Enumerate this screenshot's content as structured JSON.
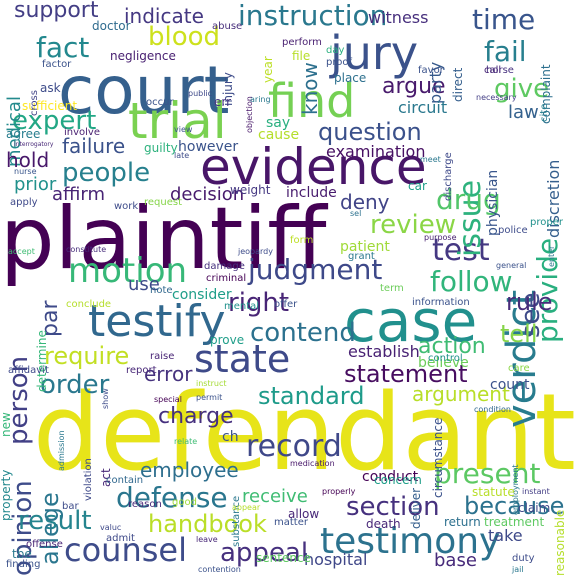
{
  "words": [
    {
      "text": "defendant",
      "color": "#e7e419"
    },
    {
      "text": "plaintiff",
      "color": "#440154"
    },
    {
      "text": "court",
      "color": "#35608d"
    },
    {
      "text": "evidence",
      "color": "#481668"
    },
    {
      "text": "case",
      "color": "#21908d"
    },
    {
      "text": "trial",
      "color": "#7ad151"
    },
    {
      "text": "jury",
      "color": "#3b528b"
    },
    {
      "text": "testify",
      "color": "#31688e"
    },
    {
      "text": "find",
      "color": "#75d054"
    },
    {
      "text": "verdict",
      "color": "#287c8e"
    },
    {
      "text": "testimony",
      "color": "#2c728e"
    },
    {
      "text": "state",
      "color": "#3e4a89"
    },
    {
      "text": "motion",
      "color": "#37b878"
    },
    {
      "text": "record",
      "color": "#3f4889"
    },
    {
      "text": "counsel",
      "color": "#3e4c8a"
    },
    {
      "text": "judgment",
      "color": "#3e4989"
    },
    {
      "text": "present",
      "color": "#5cc863"
    },
    {
      "text": "test",
      "color": "#453882"
    },
    {
      "text": "section",
      "color": "#46317e"
    },
    {
      "text": "instruction",
      "color": "#2a788e"
    },
    {
      "text": "issue",
      "color": "#2db27d"
    },
    {
      "text": "provide",
      "color": "#29af7f"
    },
    {
      "text": "defense",
      "color": "#2a768e"
    },
    {
      "text": "appeal",
      "color": "#46307e"
    },
    {
      "text": "people",
      "color": "#27808e"
    },
    {
      "text": "blood",
      "color": "#cde11d"
    },
    {
      "text": "fact",
      "color": "#23888e"
    },
    {
      "text": "time",
      "color": "#39558c"
    },
    {
      "text": "fail",
      "color": "#277f8e"
    },
    {
      "text": "question",
      "color": "#3b518b"
    },
    {
      "text": "drug",
      "color": "#52c569"
    },
    {
      "text": "review",
      "color": "#8bd646"
    },
    {
      "text": "follow",
      "color": "#31b57b"
    },
    {
      "text": "see",
      "color": "#3e4a89"
    },
    {
      "text": "rule",
      "color": "#472c7a"
    },
    {
      "text": "tell",
      "color": "#86d549"
    },
    {
      "text": "right",
      "color": "#482576"
    },
    {
      "text": "contend",
      "color": "#2c718e"
    },
    {
      "text": "opinion",
      "color": "#3e4c8a"
    },
    {
      "text": "handbook",
      "color": "#bade28"
    },
    {
      "text": "statement",
      "color": "#470d60"
    },
    {
      "text": "standard",
      "color": "#1e9b8a"
    },
    {
      "text": "argument",
      "color": "#b8de29"
    },
    {
      "text": "result",
      "color": "#25848e"
    },
    {
      "text": "because",
      "color": "#2c728e"
    },
    {
      "text": "order",
      "color": "#2a788e"
    },
    {
      "text": "allege",
      "color": "#2a768e"
    },
    {
      "text": "expert",
      "color": "#22a785"
    },
    {
      "text": "argue",
      "color": "#481a6c"
    },
    {
      "text": "give",
      "color": "#5ec962"
    },
    {
      "text": "person",
      "color": "#424086"
    },
    {
      "text": "require",
      "color": "#c2df23"
    },
    {
      "text": "know",
      "color": "#2d708e"
    },
    {
      "text": "indicate",
      "color": "#453882"
    },
    {
      "text": "support",
      "color": "#433e85"
    },
    {
      "text": "employee",
      "color": "#2e6f8e"
    },
    {
      "text": "charge",
      "color": "#46307e"
    },
    {
      "text": "error",
      "color": "#46327e"
    },
    {
      "text": "action",
      "color": "#3fbc73"
    },
    {
      "text": "deny",
      "color": "#414487"
    },
    {
      "text": "medical",
      "color": "#238a8d"
    },
    {
      "text": "failure",
      "color": "#3b528b"
    },
    {
      "text": "witness",
      "color": "#472f7d"
    },
    {
      "text": "hold",
      "color": "#48186a"
    },
    {
      "text": "law",
      "color": "#34618d"
    },
    {
      "text": "examination",
      "color": "#471063"
    },
    {
      "text": "establish",
      "color": "#482173"
    },
    {
      "text": "decision",
      "color": "#481b6d"
    },
    {
      "text": "affirm",
      "color": "#482475"
    },
    {
      "text": "prior",
      "color": "#21918c"
    },
    {
      "text": "party",
      "color": "#375a8c"
    },
    {
      "text": "circuit",
      "color": "#2a788e"
    },
    {
      "text": "receive",
      "color": "#3fbc73"
    },
    {
      "text": "hospital",
      "color": "#3f4788"
    },
    {
      "text": "base",
      "color": "#472a7a"
    },
    {
      "text": "conduct",
      "color": "#440154"
    },
    {
      "text": "patient",
      "color": "#a0da39"
    },
    {
      "text": "use",
      "color": "#3e4a89"
    },
    {
      "text": "par",
      "color": "#3e4a89"
    },
    {
      "text": "consider",
      "color": "#1f9e89"
    },
    {
      "text": "believe",
      "color": "#6ccd5a"
    },
    {
      "text": "count",
      "color": "#3b528b"
    },
    {
      "text": "discretion",
      "color": "#355f8d"
    },
    {
      "text": "physician",
      "color": "#39568c"
    },
    {
      "text": "however",
      "color": "#3a538b"
    },
    {
      "text": "include",
      "color": "#481c6e"
    },
    {
      "text": "weight",
      "color": "#453882"
    },
    {
      "text": "say",
      "color": "#29af7f"
    },
    {
      "text": "cause",
      "color": "#b5de2b"
    },
    {
      "text": "negligence",
      "color": "#482071"
    },
    {
      "text": "sufficient",
      "color": "#fde725"
    },
    {
      "text": "agree",
      "color": "#287d8e"
    },
    {
      "text": "involve",
      "color": "#481f70"
    },
    {
      "text": "ask",
      "color": "#3e4c8a"
    },
    {
      "text": "doctor",
      "color": "#2f6b8e"
    },
    {
      "text": "guilty",
      "color": "#2db27d"
    },
    {
      "text": "place",
      "color": "#2d708e"
    },
    {
      "text": "favor",
      "color": "#3b528b"
    },
    {
      "text": "file",
      "color": "#b8de29"
    },
    {
      "text": "year",
      "color": "#bddf26"
    },
    {
      "text": "injury",
      "color": "#3e4c8a"
    },
    {
      "text": "direct",
      "color": "#355f8d"
    },
    {
      "text": "complaint",
      "color": "#2d708e"
    },
    {
      "text": "abuse",
      "color": "#472d7b"
    },
    {
      "text": "horse",
      "color": "#46307e"
    },
    {
      "text": "perform",
      "color": "#481f70"
    },
    {
      "text": "day",
      "color": "#29af7f"
    },
    {
      "text": "proof",
      "color": "#3b528b"
    },
    {
      "text": "objection",
      "color": "#48186a"
    },
    {
      "text": "cross",
      "color": "#414487"
    },
    {
      "text": "factor",
      "color": "#3b528b"
    },
    {
      "text": "public",
      "color": "#3e4989"
    },
    {
      "text": "call",
      "color": "#482576"
    },
    {
      "text": "necessary",
      "color": "#433e85"
    },
    {
      "text": "occur",
      "color": "#3a538b"
    },
    {
      "text": "err",
      "color": "#453781"
    },
    {
      "text": "aring",
      "color": "#2a788e"
    },
    {
      "text": "cite",
      "color": "#277f8e"
    },
    {
      "text": "view",
      "color": "#3b528b"
    },
    {
      "text": "interrogatory",
      "color": "#482878"
    },
    {
      "text": "late",
      "color": "#3e4c8a"
    },
    {
      "text": "nurse",
      "color": "#39568c"
    },
    {
      "text": "meet",
      "color": "#2a788e"
    },
    {
      "text": "discharge",
      "color": "#3e4989"
    },
    {
      "text": "car",
      "color": "#1f9e89"
    },
    {
      "text": "apply",
      "color": "#3e4989"
    },
    {
      "text": "work",
      "color": "#3e4c8a"
    },
    {
      "text": "request",
      "color": "#86d549"
    },
    {
      "text": "sel",
      "color": "#2c718e"
    },
    {
      "text": "purpose",
      "color": "#482071"
    },
    {
      "text": "police",
      "color": "#3e4c8a"
    },
    {
      "text": "proper",
      "color": "#21918c"
    },
    {
      "text": "enter",
      "color": "#2a788e"
    },
    {
      "text": "form",
      "color": "#bddf26"
    },
    {
      "text": "grant",
      "color": "#2a788e"
    },
    {
      "text": "general",
      "color": "#3b528b"
    },
    {
      "text": "accept",
      "color": "#3fbc73"
    },
    {
      "text": "constitute",
      "color": "#472d7b"
    },
    {
      "text": "jeopardy",
      "color": "#3e4c8a"
    },
    {
      "text": "damage",
      "color": "#46307e"
    },
    {
      "text": "criminal",
      "color": "#440154"
    },
    {
      "text": "note",
      "color": "#31688e"
    },
    {
      "text": "determine",
      "color": "#35b779"
    },
    {
      "text": "conclude",
      "color": "#b5de2b"
    },
    {
      "text": "mental",
      "color": "#21918c"
    },
    {
      "text": "offer",
      "color": "#3b528b"
    },
    {
      "text": "term",
      "color": "#6ccd5a"
    },
    {
      "text": "information",
      "color": "#3b528b"
    },
    {
      "text": "prove",
      "color": "#1f9e89"
    },
    {
      "text": "control",
      "color": "#21918c"
    },
    {
      "text": "affidavit",
      "color": "#3e4989"
    },
    {
      "text": "raise",
      "color": "#482475"
    },
    {
      "text": "report",
      "color": "#482878"
    },
    {
      "text": "care",
      "color": "#8bd646"
    },
    {
      "text": "instruct",
      "color": "#a5db36"
    },
    {
      "text": "permit",
      "color": "#3b528b"
    },
    {
      "text": "property",
      "color": "#23888e"
    },
    {
      "text": "new",
      "color": "#35b779"
    },
    {
      "text": "special",
      "color": "#440154"
    },
    {
      "text": "show",
      "color": "#3e4c8a"
    },
    {
      "text": "admission",
      "color": "#2a788e"
    },
    {
      "text": "violation",
      "color": "#3e4989"
    },
    {
      "text": "act",
      "color": "#482878"
    },
    {
      "text": "relate",
      "color": "#3fbc73"
    },
    {
      "text": "circumstance",
      "color": "#3b528b"
    },
    {
      "text": "condition",
      "color": "#31688e"
    },
    {
      "text": "employment",
      "color": "#2a788e"
    },
    {
      "text": "contain",
      "color": "#31688e"
    },
    {
      "text": "substance",
      "color": "#2a788e"
    },
    {
      "text": "deliver",
      "color": "#355f8d"
    },
    {
      "text": "reasonable",
      "color": "#b5de2b"
    },
    {
      "text": "ch",
      "color": "#3b528b"
    },
    {
      "text": "medication",
      "color": "#48186a"
    },
    {
      "text": "statute",
      "color": "#b8de29"
    },
    {
      "text": "instant",
      "color": "#433e85"
    },
    {
      "text": "bar",
      "color": "#3e4c8a"
    },
    {
      "text": "properly",
      "color": "#440154"
    },
    {
      "text": "allow",
      "color": "#482878"
    },
    {
      "text": "concern",
      "color": "#1f9e89"
    },
    {
      "text": "claim",
      "color": "#3e4989"
    },
    {
      "text": "good",
      "color": "#a0da39"
    },
    {
      "text": "reason",
      "color": "#482878"
    },
    {
      "text": "appear",
      "color": "#b5de2b"
    },
    {
      "text": "matter",
      "color": "#3b528b"
    },
    {
      "text": "death",
      "color": "#482878"
    },
    {
      "text": "return",
      "color": "#2d708e"
    },
    {
      "text": "treatment",
      "color": "#5ec962"
    },
    {
      "text": "valuc",
      "color": "#3e4989"
    },
    {
      "text": "admit",
      "color": "#3e4989"
    },
    {
      "text": "offense",
      "color": "#482575"
    },
    {
      "text": "tbe",
      "color": "#2a788e"
    },
    {
      "text": "finding",
      "color": "#3b528b"
    },
    {
      "text": "leave",
      "color": "#482878"
    },
    {
      "text": "contention",
      "color": "#3b528b"
    },
    {
      "text": "sentence",
      "color": "#5ec962"
    },
    {
      "text": "take",
      "color": "#3e4989"
    },
    {
      "text": "duty",
      "color": "#3e4c8a"
    },
    {
      "text": "jail",
      "color": "#2a788e"
    }
  ]
}
